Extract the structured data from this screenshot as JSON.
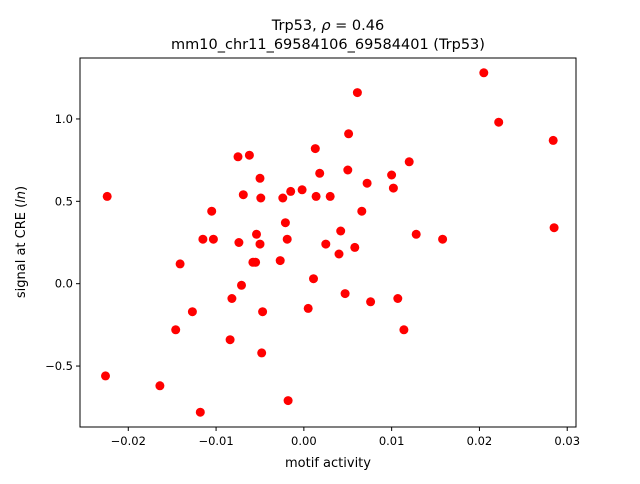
{
  "chart_data": {
    "type": "scatter",
    "title_line1": "Trp53, ρ = 0.46",
    "title_line2": "mm10_chr11_69584106_69584401 (Trp53)",
    "xlabel": "motif activity",
    "ylabel": "signal at CRE (ln)",
    "xlim": [
      -0.0255,
      0.031
    ],
    "ylim": [
      -0.87,
      1.37
    ],
    "xticks": [
      {
        "value": -0.02,
        "label": "−0.02"
      },
      {
        "value": -0.01,
        "label": "−0.01"
      },
      {
        "value": 0.0,
        "label": "0.00"
      },
      {
        "value": 0.01,
        "label": "0.01"
      },
      {
        "value": 0.02,
        "label": "0.02"
      },
      {
        "value": 0.03,
        "label": "0.03"
      }
    ],
    "yticks": [
      {
        "value": -0.5,
        "label": "−0.5"
      },
      {
        "value": 0.0,
        "label": "0.0"
      },
      {
        "value": 0.5,
        "label": "0.5"
      },
      {
        "value": 1.0,
        "label": "1.0"
      }
    ],
    "marker_color": "#ff0000",
    "points": [
      [
        -0.0224,
        0.53
      ],
      [
        -0.0226,
        -0.56
      ],
      [
        -0.0164,
        -0.62
      ],
      [
        -0.0146,
        -0.28
      ],
      [
        -0.0141,
        0.12
      ],
      [
        -0.0127,
        -0.17
      ],
      [
        -0.0118,
        -0.78
      ],
      [
        -0.0115,
        0.27
      ],
      [
        -0.0105,
        0.44
      ],
      [
        -0.0103,
        0.27
      ],
      [
        -0.0084,
        -0.34
      ],
      [
        -0.0082,
        -0.09
      ],
      [
        -0.0075,
        0.77
      ],
      [
        -0.0074,
        0.25
      ],
      [
        -0.0071,
        -0.01
      ],
      [
        -0.0069,
        0.54
      ],
      [
        -0.0062,
        0.78
      ],
      [
        -0.0058,
        0.13
      ],
      [
        -0.0055,
        0.13
      ],
      [
        -0.0054,
        0.3
      ],
      [
        -0.005,
        0.64
      ],
      [
        -0.005,
        0.24
      ],
      [
        -0.0049,
        0.52
      ],
      [
        -0.0048,
        -0.42
      ],
      [
        -0.0047,
        -0.17
      ],
      [
        -0.0027,
        0.14
      ],
      [
        -0.0024,
        0.52
      ],
      [
        -0.0021,
        0.37
      ],
      [
        -0.0019,
        0.27
      ],
      [
        -0.0018,
        -0.71
      ],
      [
        -0.0015,
        0.56
      ],
      [
        -0.0002,
        0.57
      ],
      [
        0.0005,
        -0.15
      ],
      [
        0.0011,
        0.03
      ],
      [
        0.0013,
        0.82
      ],
      [
        0.0014,
        0.53
      ],
      [
        0.0018,
        0.67
      ],
      [
        0.0025,
        0.24
      ],
      [
        0.003,
        0.53
      ],
      [
        0.004,
        0.18
      ],
      [
        0.0042,
        0.32
      ],
      [
        0.0047,
        -0.06
      ],
      [
        0.005,
        0.69
      ],
      [
        0.0051,
        0.91
      ],
      [
        0.0058,
        0.22
      ],
      [
        0.0061,
        1.16
      ],
      [
        0.0066,
        0.44
      ],
      [
        0.0072,
        0.61
      ],
      [
        0.0076,
        -0.11
      ],
      [
        0.01,
        0.66
      ],
      [
        0.0102,
        0.58
      ],
      [
        0.0107,
        -0.09
      ],
      [
        0.0114,
        -0.28
      ],
      [
        0.012,
        0.74
      ],
      [
        0.0128,
        0.3
      ],
      [
        0.0158,
        0.27
      ],
      [
        0.0205,
        1.28
      ],
      [
        0.0222,
        0.98
      ],
      [
        0.0284,
        0.87
      ],
      [
        0.0285,
        0.34
      ]
    ]
  }
}
